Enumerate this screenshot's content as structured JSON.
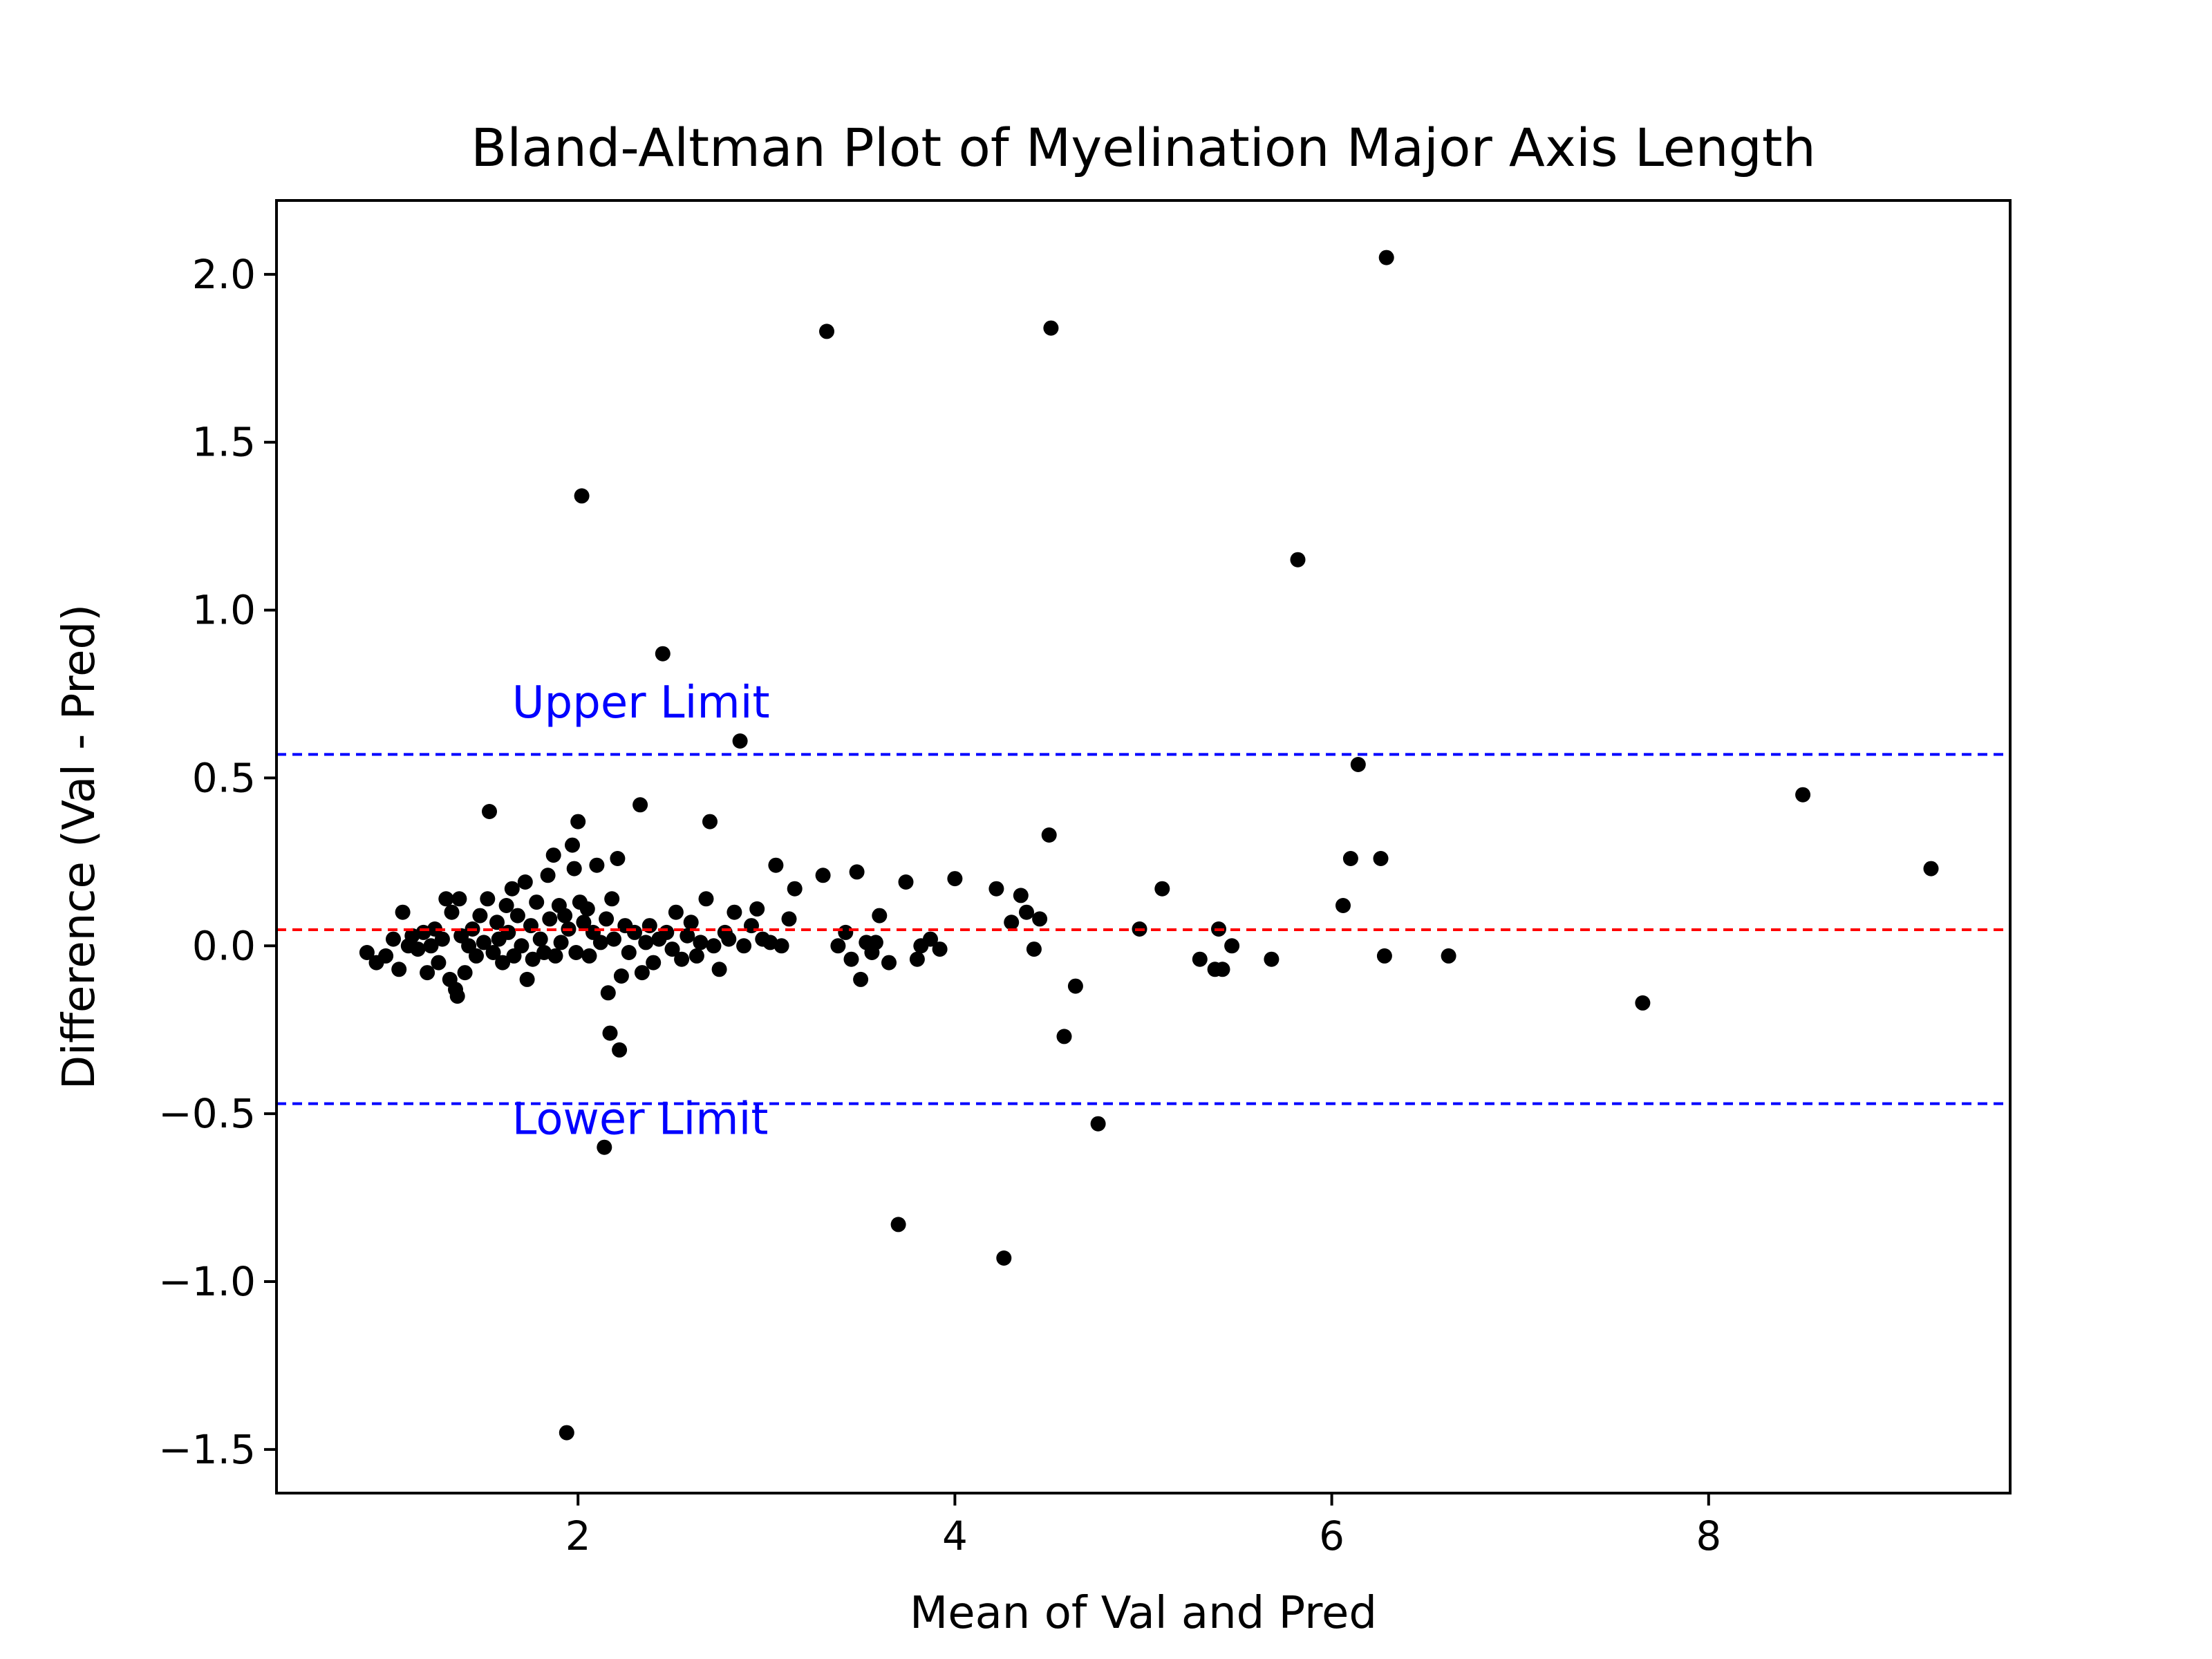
{
  "chart_data": {
    "type": "scatter",
    "title": "Bland-Altman Plot of Myelination Major Axis Length",
    "xlabel": "Mean of Val and Pred",
    "ylabel": "Difference (Val - Pred)",
    "xlim": [
      0.4,
      9.6
    ],
    "ylim": [
      -1.63,
      2.22
    ],
    "xticks": [
      2,
      4,
      6,
      8
    ],
    "xtick_labels": [
      "2",
      "4",
      "6",
      "8"
    ],
    "yticks": [
      2.0,
      1.5,
      1.0,
      0.5,
      0.0,
      -0.5,
      -1.0,
      -1.5
    ],
    "ytick_labels": [
      "2.0",
      "1.5",
      "1.0",
      "0.5",
      "0.0",
      "−0.5",
      "−1.0",
      "−1.5"
    ],
    "grid": false,
    "point_color": "#000000",
    "mean_line": {
      "y": 0.048,
      "color": "#ff0000",
      "style": "dashed"
    },
    "upper_limit": {
      "y": 0.57,
      "color": "#0000ff",
      "style": "dashed",
      "label": "Upper Limit",
      "label_x": 1.65,
      "label_y": 0.68
    },
    "lower_limit": {
      "y": -0.47,
      "color": "#0000ff",
      "style": "dashed",
      "label": "Lower Limit",
      "label_x": 1.65,
      "label_y": -0.56
    },
    "points": [
      [
        0.88,
        -0.02
      ],
      [
        0.93,
        -0.05
      ],
      [
        0.98,
        -0.03
      ],
      [
        1.02,
        0.02
      ],
      [
        1.05,
        -0.07
      ],
      [
        1.07,
        0.1
      ],
      [
        1.1,
        0.0
      ],
      [
        1.12,
        0.03
      ],
      [
        1.15,
        -0.01
      ],
      [
        1.18,
        0.04
      ],
      [
        1.2,
        -0.08
      ],
      [
        1.22,
        0.0
      ],
      [
        1.24,
        0.05
      ],
      [
        1.26,
        -0.05
      ],
      [
        1.28,
        0.02
      ],
      [
        1.3,
        0.14
      ],
      [
        1.32,
        -0.1
      ],
      [
        1.33,
        0.1
      ],
      [
        1.35,
        -0.13
      ],
      [
        1.36,
        -0.15
      ],
      [
        1.37,
        0.14
      ],
      [
        1.38,
        0.03
      ],
      [
        1.4,
        -0.08
      ],
      [
        1.42,
        0.0
      ],
      [
        1.44,
        0.05
      ],
      [
        1.46,
        -0.03
      ],
      [
        1.48,
        0.09
      ],
      [
        1.5,
        0.01
      ],
      [
        1.52,
        0.14
      ],
      [
        1.53,
        0.4
      ],
      [
        1.55,
        -0.02
      ],
      [
        1.57,
        0.07
      ],
      [
        1.58,
        0.02
      ],
      [
        1.6,
        -0.05
      ],
      [
        1.62,
        0.12
      ],
      [
        1.63,
        0.04
      ],
      [
        1.65,
        0.17
      ],
      [
        1.66,
        -0.03
      ],
      [
        1.68,
        0.09
      ],
      [
        1.7,
        0.0
      ],
      [
        1.72,
        0.19
      ],
      [
        1.73,
        -0.1
      ],
      [
        1.75,
        0.06
      ],
      [
        1.76,
        -0.04
      ],
      [
        1.78,
        0.13
      ],
      [
        1.8,
        0.02
      ],
      [
        1.82,
        -0.02
      ],
      [
        1.84,
        0.21
      ],
      [
        1.85,
        0.08
      ],
      [
        1.87,
        0.27
      ],
      [
        1.88,
        -0.03
      ],
      [
        1.9,
        0.12
      ],
      [
        1.91,
        0.01
      ],
      [
        1.93,
        0.09
      ],
      [
        1.94,
        -1.45
      ],
      [
        1.95,
        0.05
      ],
      [
        1.97,
        0.3
      ],
      [
        1.98,
        0.23
      ],
      [
        1.99,
        -0.02
      ],
      [
        2.0,
        0.37
      ],
      [
        2.01,
        0.13
      ],
      [
        2.02,
        1.34
      ],
      [
        2.03,
        0.07
      ],
      [
        2.05,
        0.11
      ],
      [
        2.06,
        -0.03
      ],
      [
        2.08,
        0.04
      ],
      [
        2.1,
        0.24
      ],
      [
        2.12,
        0.01
      ],
      [
        2.14,
        -0.6
      ],
      [
        2.15,
        0.08
      ],
      [
        2.16,
        -0.14
      ],
      [
        2.17,
        -0.26
      ],
      [
        2.18,
        0.14
      ],
      [
        2.19,
        0.02
      ],
      [
        2.21,
        0.26
      ],
      [
        2.22,
        -0.31
      ],
      [
        2.23,
        -0.09
      ],
      [
        2.25,
        0.06
      ],
      [
        2.27,
        -0.02
      ],
      [
        2.3,
        0.04
      ],
      [
        2.33,
        0.42
      ],
      [
        2.34,
        -0.08
      ],
      [
        2.36,
        0.01
      ],
      [
        2.38,
        0.06
      ],
      [
        2.4,
        -0.05
      ],
      [
        2.43,
        0.02
      ],
      [
        2.45,
        0.87
      ],
      [
        2.47,
        0.04
      ],
      [
        2.5,
        -0.01
      ],
      [
        2.52,
        0.1
      ],
      [
        2.55,
        -0.04
      ],
      [
        2.58,
        0.03
      ],
      [
        2.6,
        0.07
      ],
      [
        2.63,
        -0.03
      ],
      [
        2.65,
        0.01
      ],
      [
        2.68,
        0.14
      ],
      [
        2.7,
        0.37
      ],
      [
        2.72,
        0.0
      ],
      [
        2.75,
        -0.07
      ],
      [
        2.78,
        0.04
      ],
      [
        2.8,
        0.02
      ],
      [
        2.83,
        0.1
      ],
      [
        2.86,
        0.61
      ],
      [
        2.88,
        0.0
      ],
      [
        2.92,
        0.06
      ],
      [
        2.95,
        0.11
      ],
      [
        2.98,
        0.02
      ],
      [
        3.02,
        0.01
      ],
      [
        3.05,
        0.24
      ],
      [
        3.08,
        0.0
      ],
      [
        3.12,
        0.08
      ],
      [
        3.15,
        0.17
      ],
      [
        3.3,
        0.21
      ],
      [
        3.32,
        1.83
      ],
      [
        3.38,
        0.0
      ],
      [
        3.42,
        0.04
      ],
      [
        3.45,
        -0.04
      ],
      [
        3.48,
        0.22
      ],
      [
        3.5,
        -0.1
      ],
      [
        3.53,
        0.01
      ],
      [
        3.56,
        -0.02
      ],
      [
        3.58,
        0.01
      ],
      [
        3.6,
        0.09
      ],
      [
        3.65,
        -0.05
      ],
      [
        3.7,
        -0.83
      ],
      [
        3.74,
        0.19
      ],
      [
        3.8,
        -0.04
      ],
      [
        3.82,
        0.0
      ],
      [
        3.87,
        0.02
      ],
      [
        3.92,
        -0.01
      ],
      [
        4.0,
        0.2
      ],
      [
        4.22,
        0.17
      ],
      [
        4.26,
        -0.93
      ],
      [
        4.3,
        0.07
      ],
      [
        4.35,
        0.15
      ],
      [
        4.38,
        0.1
      ],
      [
        4.42,
        -0.01
      ],
      [
        4.45,
        0.08
      ],
      [
        4.5,
        0.33
      ],
      [
        4.51,
        1.84
      ],
      [
        4.58,
        -0.27
      ],
      [
        4.64,
        -0.12
      ],
      [
        4.76,
        -0.53
      ],
      [
        4.98,
        0.05
      ],
      [
        5.1,
        0.17
      ],
      [
        5.3,
        -0.04
      ],
      [
        5.38,
        -0.07
      ],
      [
        5.4,
        0.05
      ],
      [
        5.42,
        -0.07
      ],
      [
        5.47,
        0.0
      ],
      [
        5.68,
        -0.04
      ],
      [
        5.82,
        1.15
      ],
      [
        6.06,
        0.12
      ],
      [
        6.1,
        0.26
      ],
      [
        6.14,
        0.54
      ],
      [
        6.26,
        0.26
      ],
      [
        6.28,
        -0.03
      ],
      [
        6.29,
        2.05
      ],
      [
        6.62,
        -0.03
      ],
      [
        7.65,
        -0.17
      ],
      [
        8.5,
        0.45
      ],
      [
        9.18,
        0.23
      ]
    ]
  }
}
